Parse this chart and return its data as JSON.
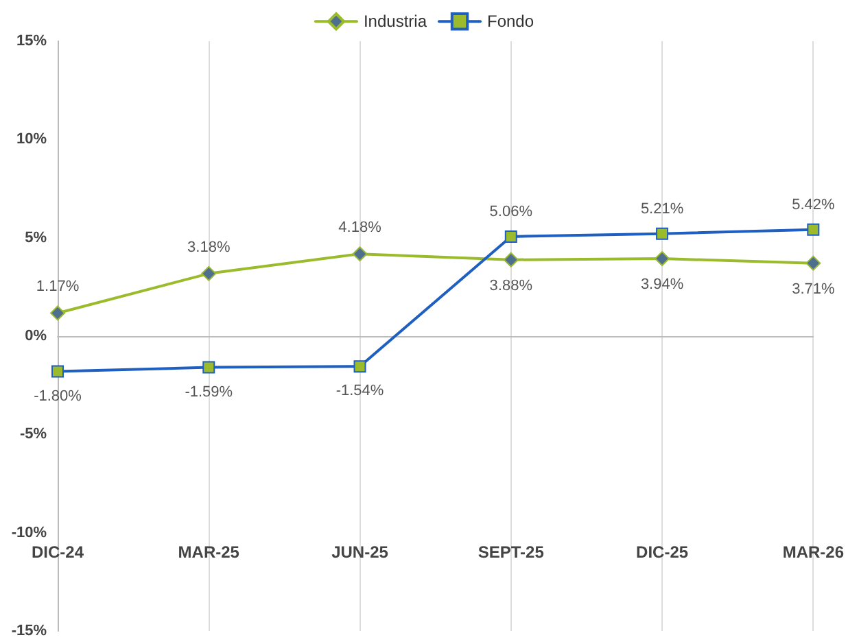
{
  "chart_data": {
    "type": "line",
    "categories": [
      "DIC-24",
      "MAR-25",
      "JUN-25",
      "SEPT-25",
      "DIC-25",
      "MAR-26"
    ],
    "series": [
      {
        "name": "Industria",
        "color": "#9bbb2c",
        "marker": "diamond",
        "values": [
          1.17,
          3.18,
          4.18,
          3.88,
          3.94,
          3.71
        ],
        "value_labels": [
          "1.17%",
          "3.18%",
          "4.18%",
          "3.88%",
          "3.94%",
          "3.71%"
        ]
      },
      {
        "name": "Fondo",
        "color": "#1f5fbf",
        "marker": "square",
        "values": [
          -1.8,
          -1.59,
          -1.54,
          5.06,
          5.21,
          5.42
        ],
        "value_labels": [
          "-1.80%",
          "-1.59%",
          "-1.54%",
          "5.06%",
          "5.21%",
          "5.42%"
        ]
      }
    ],
    "ylim": [
      -15,
      15
    ],
    "yticks": [
      {
        "value": -15,
        "label": "-15%"
      },
      {
        "value": -10,
        "label": "-10%"
      },
      {
        "value": -5,
        "label": "-5%"
      },
      {
        "value": 0,
        "label": "0%"
      },
      {
        "value": 5,
        "label": "5%"
      },
      {
        "value": 10,
        "label": "10%"
      },
      {
        "value": 15,
        "label": "15%"
      }
    ],
    "grid": "x",
    "legend": "top"
  }
}
